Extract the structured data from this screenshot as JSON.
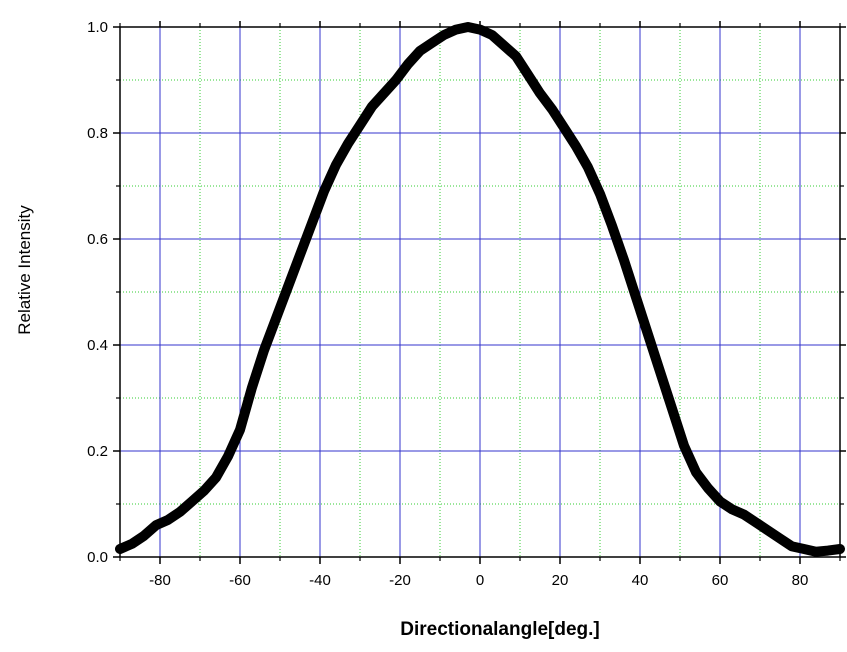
{
  "chart_data": {
    "type": "line",
    "xlabel": "Directionalangle[deg.]",
    "ylabel": "Relative Intensity",
    "xlim": [
      -90,
      90
    ],
    "ylim": [
      0.0,
      1.0
    ],
    "x_ticks": [
      -80,
      -60,
      -40,
      -20,
      0,
      20,
      40,
      60,
      80
    ],
    "y_ticks": [
      0.0,
      0.2,
      0.4,
      0.6,
      0.8,
      1.0
    ],
    "x_tick_labels": [
      "-80",
      "-60",
      "-40",
      "-20",
      "0",
      "20",
      "40",
      "60",
      "80"
    ],
    "y_tick_labels": [
      "0.0",
      "0.2",
      "0.4",
      "0.6",
      "0.8",
      "1.0"
    ],
    "grid": {
      "major": true,
      "minor": true
    },
    "colors": {
      "major_grid": "#3333cc",
      "minor_grid": "#33cc33",
      "line": "#000000"
    },
    "series": [
      {
        "x": [
          -90,
          -87,
          -84,
          -81,
          -78,
          -75,
          -72,
          -69,
          -66,
          -63,
          -60,
          -57,
          -54,
          -51,
          -48,
          -45,
          -42,
          -39,
          -36,
          -33,
          -30,
          -27,
          -24,
          -21,
          -18,
          -15,
          -12,
          -9,
          -6,
          -3,
          0,
          3,
          6,
          9,
          12,
          15,
          18,
          21,
          24,
          27,
          30,
          33,
          36,
          39,
          42,
          45,
          48,
          51,
          54,
          57,
          60,
          63,
          66,
          69,
          72,
          75,
          78,
          81,
          84,
          87,
          90
        ],
        "y": [
          0.015,
          0.025,
          0.04,
          0.06,
          0.07,
          0.085,
          0.105,
          0.125,
          0.15,
          0.19,
          0.24,
          0.32,
          0.39,
          0.45,
          0.51,
          0.57,
          0.63,
          0.69,
          0.74,
          0.78,
          0.815,
          0.85,
          0.875,
          0.9,
          0.93,
          0.955,
          0.97,
          0.985,
          0.995,
          1.0,
          0.995,
          0.985,
          0.965,
          0.945,
          0.91,
          0.875,
          0.845,
          0.81,
          0.775,
          0.735,
          0.685,
          0.625,
          0.56,
          0.49,
          0.42,
          0.35,
          0.28,
          0.21,
          0.16,
          0.13,
          0.105,
          0.09,
          0.08,
          0.065,
          0.05,
          0.035,
          0.02,
          0.015,
          0.01,
          0.012,
          0.015
        ]
      }
    ]
  }
}
